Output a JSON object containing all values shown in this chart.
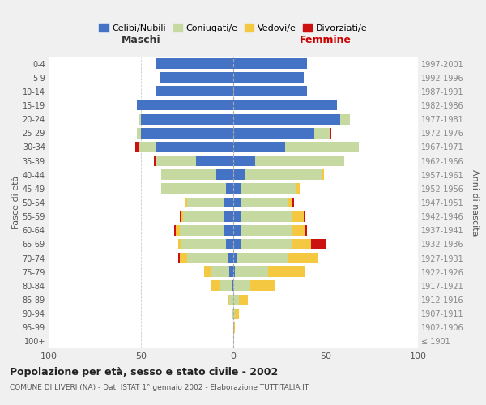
{
  "age_groups": [
    "100+",
    "95-99",
    "90-94",
    "85-89",
    "80-84",
    "75-79",
    "70-74",
    "65-69",
    "60-64",
    "55-59",
    "50-54",
    "45-49",
    "40-44",
    "35-39",
    "30-34",
    "25-29",
    "20-24",
    "15-19",
    "10-14",
    "5-9",
    "0-4"
  ],
  "birth_years": [
    "≤ 1901",
    "1902-1906",
    "1907-1911",
    "1912-1916",
    "1917-1921",
    "1922-1926",
    "1927-1931",
    "1932-1936",
    "1937-1941",
    "1942-1946",
    "1947-1951",
    "1952-1956",
    "1957-1961",
    "1962-1966",
    "1967-1971",
    "1972-1976",
    "1977-1981",
    "1982-1986",
    "1987-1991",
    "1992-1996",
    "1997-2001"
  ],
  "colors": {
    "celibe": "#4472C4",
    "coniugato": "#C5D9A0",
    "vedovo": "#F5C842",
    "divorziato": "#CC1111"
  },
  "maschi": {
    "celibe": [
      0,
      0,
      0,
      0,
      1,
      2,
      3,
      4,
      5,
      5,
      5,
      4,
      9,
      20,
      42,
      50,
      50,
      52,
      42,
      40,
      42
    ],
    "coniugato": [
      0,
      0,
      1,
      2,
      6,
      10,
      22,
      24,
      24,
      22,
      20,
      35,
      30,
      22,
      9,
      2,
      1,
      0,
      0,
      0,
      0
    ],
    "vedovo": [
      0,
      0,
      0,
      1,
      5,
      4,
      4,
      2,
      2,
      1,
      1,
      0,
      0,
      0,
      0,
      0,
      0,
      0,
      0,
      0,
      0
    ],
    "divorziato": [
      0,
      0,
      0,
      0,
      0,
      0,
      1,
      0,
      1,
      1,
      0,
      0,
      0,
      1,
      2,
      0,
      0,
      0,
      0,
      0,
      0
    ]
  },
  "femmine": {
    "nubile": [
      0,
      0,
      0,
      0,
      0,
      1,
      2,
      4,
      4,
      4,
      4,
      4,
      6,
      12,
      28,
      44,
      58,
      56,
      40,
      38,
      40
    ],
    "coniugata": [
      0,
      0,
      1,
      3,
      9,
      18,
      28,
      28,
      28,
      28,
      26,
      30,
      42,
      48,
      40,
      8,
      5,
      0,
      0,
      0,
      0
    ],
    "vedova": [
      0,
      1,
      2,
      5,
      14,
      20,
      16,
      10,
      7,
      6,
      2,
      2,
      1,
      0,
      0,
      0,
      0,
      0,
      0,
      0,
      0
    ],
    "divorziata": [
      0,
      0,
      0,
      0,
      0,
      0,
      0,
      8,
      1,
      1,
      1,
      0,
      0,
      0,
      0,
      1,
      0,
      0,
      0,
      0,
      0
    ]
  },
  "xlim": 100,
  "title": "Popolazione per età, sesso e stato civile - 2002",
  "subtitle": "COMUNE DI LIVERI (NA) - Dati ISTAT 1° gennaio 2002 - Elaborazione TUTTITALIA.IT",
  "ylabel_left": "Fasce di età",
  "ylabel_right": "Anni di nascita",
  "xlabel_left": "Maschi",
  "xlabel_right": "Femmine",
  "legend_labels": [
    "Celibi/Nubili",
    "Coniugati/e",
    "Vedovi/e",
    "Divorziati/e"
  ],
  "bg_color": "#f0f0f0",
  "plot_bg_color": "#ffffff"
}
